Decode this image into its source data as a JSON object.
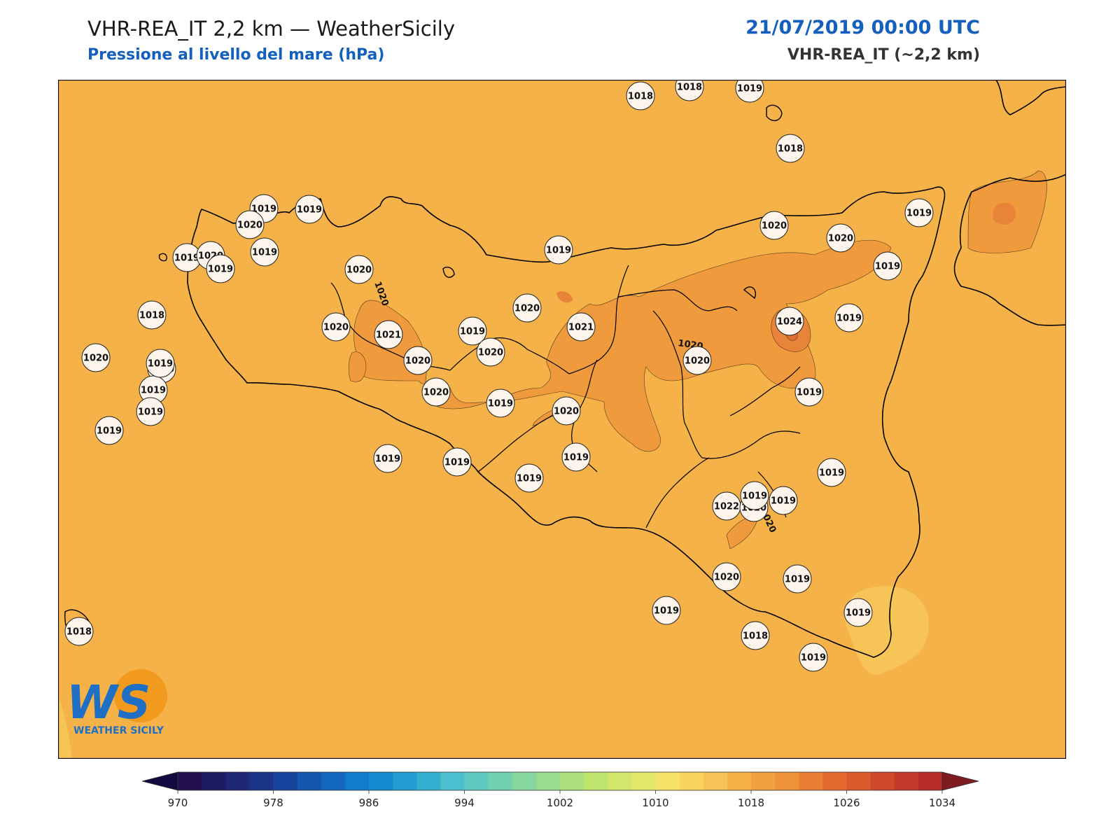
{
  "header": {
    "title": "VHR-REA_IT 2,2 km — WeatherSicily",
    "subtitle": "Pressione al livello del mare (hPa)",
    "datetime": "21/07/2019 00:00 UTC",
    "model": "VHR-REA_IT (~2,2 km)"
  },
  "colors": {
    "background_field": "#f4b249",
    "high_field": "#f09a3e",
    "peak_field": "#e8843a",
    "low_field": "#f7c458",
    "coast": "#000000",
    "title_blue": "#1560bd"
  },
  "contour_labels": [
    "1020",
    "1020",
    "1020"
  ],
  "stations": [
    {
      "v": "1018"
    },
    {
      "v": "1018"
    },
    {
      "v": "1019"
    },
    {
      "v": "1018"
    },
    {
      "v": "1019"
    },
    {
      "v": "1019"
    },
    {
      "v": "1019"
    },
    {
      "v": "1019"
    },
    {
      "v": "1020"
    },
    {
      "v": "1020"
    },
    {
      "v": "1019"
    },
    {
      "v": "1019"
    },
    {
      "v": "1019"
    },
    {
      "v": "1019"
    },
    {
      "v": "1019"
    },
    {
      "v": "1019"
    },
    {
      "v": "1020"
    },
    {
      "v": "1022"
    },
    {
      "v": "1020"
    },
    {
      "v": "1019"
    },
    {
      "v": "1020"
    },
    {
      "v": "1024"
    },
    {
      "v": "1019"
    },
    {
      "v": "1021"
    },
    {
      "v": "1020"
    },
    {
      "v": "1021"
    },
    {
      "v": "1020"
    },
    {
      "v": "1019"
    },
    {
      "v": "1020"
    },
    {
      "v": "1020"
    },
    {
      "v": "1019"
    },
    {
      "v": "1020"
    },
    {
      "v": "1019"
    },
    {
      "v": "1019"
    },
    {
      "v": "1020"
    },
    {
      "v": "1020"
    },
    {
      "v": "1019"
    },
    {
      "v": "1019"
    },
    {
      "v": "1020"
    },
    {
      "v": "1019"
    },
    {
      "v": "1019"
    },
    {
      "v": "1020"
    },
    {
      "v": "1019"
    },
    {
      "v": "1020"
    },
    {
      "v": "1019"
    },
    {
      "v": "1018"
    },
    {
      "v": "1019"
    },
    {
      "v": "1019"
    },
    {
      "v": "1020"
    },
    {
      "v": "1019"
    },
    {
      "v": "1019"
    },
    {
      "v": "1018"
    },
    {
      "v": "1019"
    },
    {
      "v": "1018"
    }
  ],
  "colorbar": {
    "colors": [
      "#23104f",
      "#1f1b63",
      "#1d2773",
      "#1b3487",
      "#17449c",
      "#1455ae",
      "#1467bf",
      "#137bcb",
      "#158ccf",
      "#219dd2",
      "#35b0d1",
      "#4bbfcd",
      "#60c9c0",
      "#72d0b0",
      "#85d79f",
      "#99dc8e",
      "#abe07d",
      "#bde46d",
      "#d0e76b",
      "#e3e86a",
      "#f7e36a",
      "#f9d35f",
      "#f7c256",
      "#f4b249",
      "#f1a240",
      "#ed923a",
      "#e97e35",
      "#e46a2f",
      "#db5a2c",
      "#cf4a2b",
      "#c33a2b",
      "#b52c2a"
    ],
    "under_color": "#140a40",
    "over_color": "#7e1c1f",
    "ticks": [
      "970",
      "978",
      "986",
      "994",
      "1002",
      "1010",
      "1018",
      "1026",
      "1034"
    ]
  },
  "logo": {
    "letters": "WS",
    "text": "WEATHER SICILY"
  }
}
